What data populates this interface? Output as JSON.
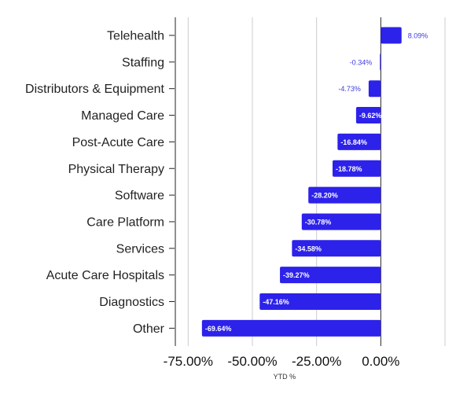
{
  "chart_data": {
    "type": "bar",
    "orientation": "horizontal",
    "categories": [
      "Telehealth",
      "Staffing",
      "Distributors & Equipment",
      "Managed Care",
      "Post-Acute Care",
      "Physical Therapy",
      "Software",
      "Care Platform",
      "Services",
      "Acute Care Hospitals",
      "Diagnostics",
      "Other"
    ],
    "values": [
      8.09,
      -0.34,
      -4.73,
      -9.62,
      -16.84,
      -18.78,
      -28.2,
      -30.78,
      -34.58,
      -39.27,
      -47.16,
      -69.64
    ],
    "value_labels": [
      "8.09%",
      "-0.34%",
      "-4.73%",
      "-9.62%",
      "-16.84%",
      "-18.78%",
      "-28.20%",
      "-30.78%",
      "-34.58%",
      "-39.27%",
      "-47.16%",
      "-69.64%"
    ],
    "xlabel": "YTD %",
    "ylabel": "",
    "title": "",
    "xlim": [
      -80,
      25
    ],
    "x_ticks": [
      -75,
      -50,
      -25,
      0
    ],
    "x_tick_labels": [
      "-75.00%",
      "-50.00%",
      "-25.00%",
      "0.00%"
    ],
    "grid": true,
    "legend": "none",
    "bar_color": "#2d22ea"
  }
}
